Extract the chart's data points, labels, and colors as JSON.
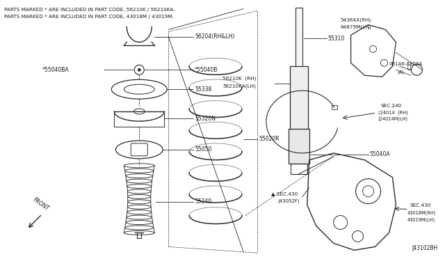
{
  "background_color": "#ffffff",
  "line_color": "#2a2a2a",
  "text_color": "#1a1a1a",
  "fig_width": 6.4,
  "fig_height": 3.72,
  "dpi": 100,
  "header_lines": [
    "PARTS MARKED * ARE INCLUDED IN PART CODE, 56210K / 56210KA.",
    "PARTS MARKED * ARE INCLUDED IN PART CODE, 43018M / 43019M."
  ],
  "footer_label": "J43102BH",
  "front_label": "FRONT"
}
